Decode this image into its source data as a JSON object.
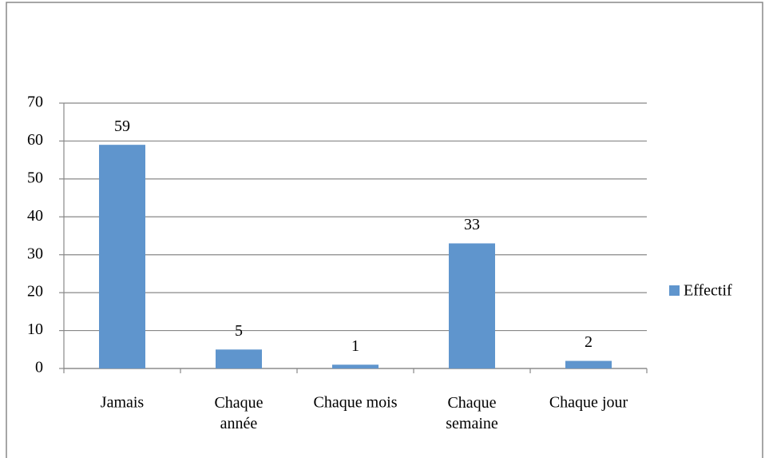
{
  "chart_data": {
    "type": "bar",
    "categories": [
      "Jamais",
      "Chaque\nannée",
      "Chaque mois",
      "Chaque\nsemaine",
      "Chaque jour"
    ],
    "series": [
      {
        "name": "Effectif",
        "color": "#5f95cd",
        "values": [
          59,
          5,
          1,
          33,
          2
        ]
      }
    ],
    "ylim": [
      0,
      70
    ],
    "yticks": [
      0,
      10,
      20,
      30,
      40,
      50,
      60,
      70
    ],
    "grid": true,
    "legend": "right"
  }
}
